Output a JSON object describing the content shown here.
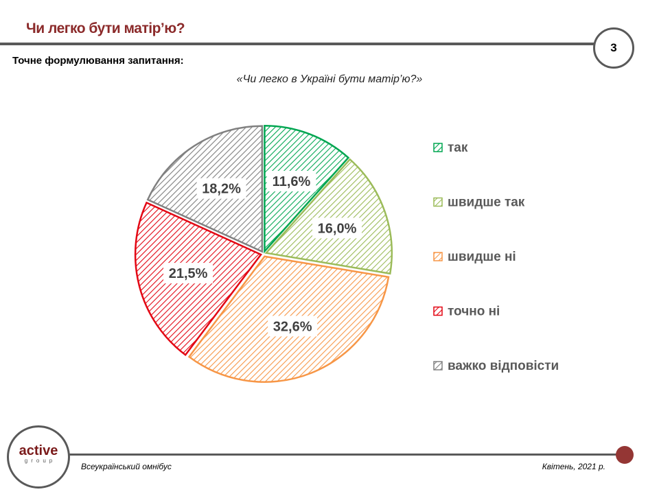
{
  "header": {
    "title": "Чи легко бути матір’ю?",
    "page_number": "3",
    "subheading": "Точне формулювання  запитання:",
    "question": "«Чи легко в Україні бути матір’ю?»"
  },
  "footer": {
    "logo_main": "active",
    "logo_sub": "group",
    "left_text": "Всеукраїнський омнібус",
    "right_text": "Квітень, 2021 р."
  },
  "chart_data": {
    "type": "pie",
    "title": "«Чи легко в Україні бути матір’ю?»",
    "legend_position": "right",
    "categories": [
      "так",
      "швидше так",
      "швидше ні",
      "точно ні",
      "важко відповісти"
    ],
    "values": [
      11.6,
      16.0,
      32.6,
      21.5,
      18.2
    ],
    "labels": [
      "11,6%",
      "16,0%",
      "32,6%",
      "21,5%",
      "18,2%"
    ],
    "colors": [
      "#00a651",
      "#9bbb59",
      "#f79646",
      "#e30613",
      "#808080"
    ]
  }
}
